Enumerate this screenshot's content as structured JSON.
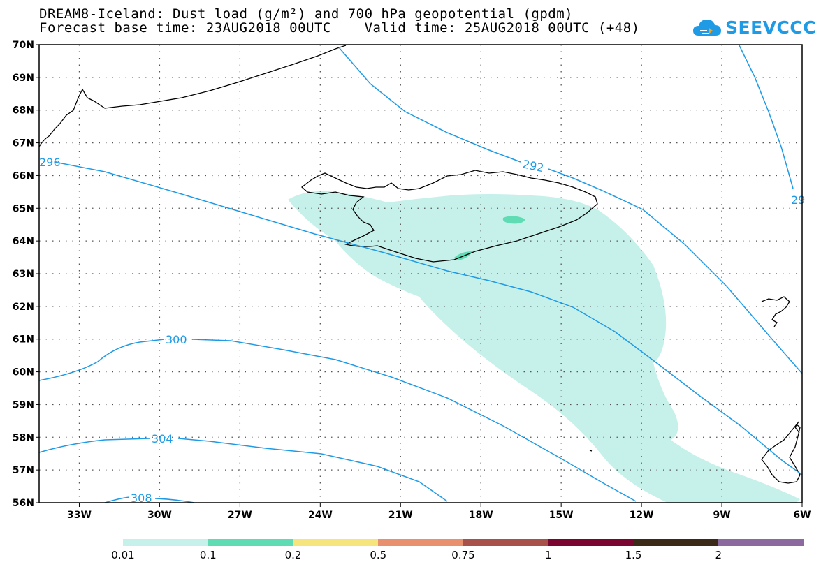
{
  "title": {
    "line1": "DREAM8-Iceland: Dust load (g/m²) and 700 hPa geopotential (gpdm)",
    "line2": "Forecast base time: 23AUG2018 00UTC    Valid time: 25AUG2018 00UTC (+48)"
  },
  "logo": {
    "text": "SEEVCCC",
    "icon": "cloud-icon",
    "color": "#1f9be6"
  },
  "map": {
    "lon_range": [
      -34.5,
      -6
    ],
    "lat_range": [
      56,
      70
    ],
    "lon_ticks": [
      "33W",
      "30W",
      "27W",
      "24W",
      "21W",
      "18W",
      "15W",
      "12W",
      "9W",
      "6W"
    ],
    "lat_ticks": [
      "56N",
      "57N",
      "58N",
      "59N",
      "60N",
      "61N",
      "62N",
      "63N",
      "64N",
      "65N",
      "66N",
      "67N",
      "68N",
      "69N",
      "70N"
    ],
    "contour_labels": [
      "296",
      "300",
      "304",
      "308",
      "292",
      "29"
    ],
    "contour_color": "#1f9be6",
    "grid": "dotted"
  },
  "legend": {
    "colors": [
      "#c6f0ea",
      "#5fdcb4",
      "#f5e57c",
      "#e9906e",
      "#a8514b",
      "#7a0530",
      "#3b2a17",
      "#8c6aa0"
    ],
    "labels": [
      "0.01",
      "0.1",
      "0.2",
      "0.5",
      "0.75",
      "1",
      "1.5",
      "2"
    ]
  }
}
